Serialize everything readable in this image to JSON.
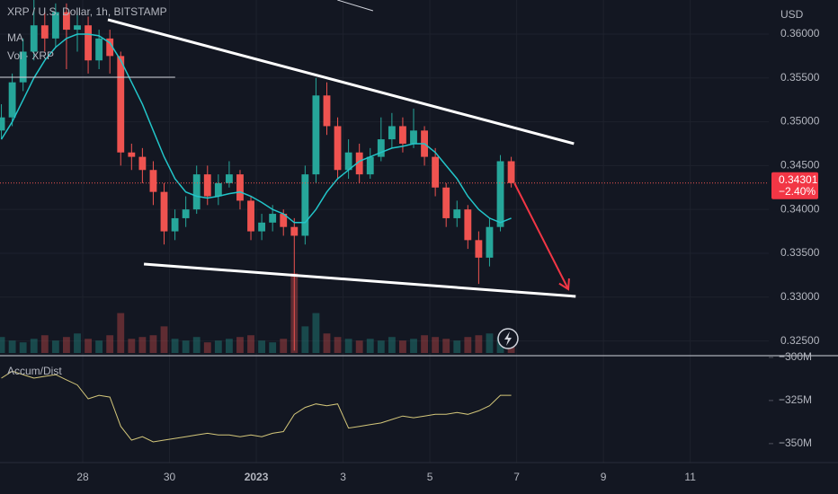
{
  "chart_data": {
    "type": "candlestick",
    "title": "XRP / U.S. Dollar, 1h, BITSTAMP",
    "indicators": [
      "MA",
      "Vol · XRP"
    ],
    "currency": "USD",
    "x": [
      -1.875,
      -1.625,
      -1.375,
      -1.125,
      -0.875,
      -0.625,
      -0.375,
      -0.125,
      0.125,
      0.375,
      0.625,
      0.875,
      1.125,
      1.375,
      1.625,
      1.875,
      2.125,
      2.375,
      2.625,
      2.875,
      3.125,
      3.375,
      3.625,
      3.875,
      4.125,
      4.375,
      4.625,
      4.875,
      5.125,
      5.375,
      5.625,
      5.875,
      6.125,
      6.375,
      6.625,
      6.875,
      7.125,
      7.375,
      7.625,
      7.875,
      8.125,
      8.375,
      8.625,
      8.875,
      9.125,
      9.375,
      9.625,
      9.875
    ],
    "open": [
      0.349,
      0.3505,
      0.3545,
      0.358,
      0.361,
      0.3595,
      0.3625,
      0.3605,
      0.361,
      0.357,
      0.3595,
      0.3575,
      0.3465,
      0.346,
      0.3445,
      0.342,
      0.3375,
      0.339,
      0.34,
      0.344,
      0.3415,
      0.343,
      0.344,
      0.341,
      0.3375,
      0.3385,
      0.3395,
      0.338,
      0.337,
      0.344,
      0.353,
      0.3495,
      0.3445,
      0.3465,
      0.344,
      0.346,
      0.348,
      0.3495,
      0.3475,
      0.349,
      0.346,
      0.3425,
      0.339,
      0.34,
      0.3365,
      0.3345,
      0.338,
      0.3455
    ],
    "high": [
      0.352,
      0.3555,
      0.3595,
      0.364,
      0.3625,
      0.3635,
      0.3635,
      0.3625,
      0.362,
      0.3605,
      0.3605,
      0.358,
      0.3475,
      0.347,
      0.3455,
      0.343,
      0.34,
      0.3415,
      0.345,
      0.345,
      0.344,
      0.3455,
      0.3445,
      0.3415,
      0.3395,
      0.3405,
      0.34,
      0.339,
      0.345,
      0.355,
      0.3545,
      0.3505,
      0.348,
      0.3475,
      0.347,
      0.3505,
      0.351,
      0.3505,
      0.3515,
      0.3495,
      0.347,
      0.343,
      0.341,
      0.3405,
      0.3375,
      0.339,
      0.3462,
      0.346
    ],
    "low": [
      0.348,
      0.3495,
      0.3535,
      0.357,
      0.358,
      0.3585,
      0.356,
      0.358,
      0.3555,
      0.356,
      0.3555,
      0.345,
      0.3445,
      0.343,
      0.3405,
      0.336,
      0.3365,
      0.338,
      0.3395,
      0.3405,
      0.3405,
      0.3425,
      0.34,
      0.3365,
      0.3365,
      0.3375,
      0.337,
      0.3239,
      0.336,
      0.343,
      0.3485,
      0.3435,
      0.3435,
      0.343,
      0.3435,
      0.3455,
      0.347,
      0.3465,
      0.347,
      0.345,
      0.3415,
      0.338,
      0.338,
      0.3355,
      0.3315,
      0.3335,
      0.3375,
      0.3425
    ],
    "close": [
      0.3505,
      0.3545,
      0.358,
      0.361,
      0.3595,
      0.3625,
      0.3605,
      0.361,
      0.357,
      0.3595,
      0.3575,
      0.3465,
      0.346,
      0.3445,
      0.342,
      0.3375,
      0.339,
      0.34,
      0.344,
      0.3415,
      0.343,
      0.344,
      0.341,
      0.3375,
      0.3385,
      0.3395,
      0.338,
      0.337,
      0.344,
      0.353,
      0.3495,
      0.3445,
      0.3465,
      0.344,
      0.346,
      0.348,
      0.3495,
      0.3475,
      0.349,
      0.346,
      0.3425,
      0.339,
      0.34,
      0.3365,
      0.3345,
      0.338,
      0.3455,
      0.34301
    ],
    "ma": [
      0.348,
      0.35,
      0.3525,
      0.355,
      0.357,
      0.3585,
      0.3595,
      0.36,
      0.36,
      0.3598,
      0.359,
      0.357,
      0.3545,
      0.352,
      0.349,
      0.346,
      0.3435,
      0.342,
      0.3415,
      0.3413,
      0.3415,
      0.3418,
      0.342,
      0.3415,
      0.3408,
      0.34,
      0.3395,
      0.3385,
      0.3385,
      0.34,
      0.342,
      0.3435,
      0.3445,
      0.3455,
      0.346,
      0.3465,
      0.347,
      0.3472,
      0.3475,
      0.3475,
      0.3465,
      0.345,
      0.3435,
      0.3415,
      0.34,
      0.339,
      0.3385,
      0.339
    ],
    "volume": [
      18,
      14,
      12,
      16,
      20,
      14,
      18,
      22,
      16,
      14,
      20,
      45,
      16,
      18,
      20,
      30,
      16,
      14,
      18,
      12,
      14,
      16,
      18,
      20,
      14,
      12,
      16,
      90,
      30,
      45,
      22,
      18,
      16,
      14,
      16,
      14,
      18,
      14,
      16,
      20,
      18,
      16,
      14,
      18,
      20,
      22,
      18,
      12
    ],
    "vol_ylim": [
      0,
      400
    ],
    "accum_dist_title": "Accum/Dist",
    "accum_dist": [
      -312,
      -308,
      -310,
      -312,
      -311,
      -310,
      -313,
      -316,
      -324,
      -322,
      -323,
      -340,
      -348,
      -346,
      -349,
      -348,
      -347,
      -346,
      -345,
      -344,
      -345,
      -345,
      -346,
      -345,
      -346,
      -344,
      -343,
      -333,
      -329,
      -327,
      -328,
      -327,
      -341,
      -340,
      -339,
      -338,
      -336,
      -334,
      -335,
      -334,
      -333,
      -333,
      -332,
      -333,
      -331,
      -328,
      -322,
      -322
    ],
    "ad_ylim": [
      -361,
      -299
    ],
    "ad_yticks": [
      {
        "value": -300,
        "label": "−300M"
      },
      {
        "value": -325,
        "label": "−325M"
      },
      {
        "value": -350,
        "label": "−350M"
      }
    ],
    "xlim": [
      -1.907,
      15.81
    ],
    "xticks": [
      {
        "value": 0,
        "label": "28"
      },
      {
        "value": 2,
        "label": "30"
      },
      {
        "value": 4,
        "label": "2023"
      },
      {
        "value": 6,
        "label": "3"
      },
      {
        "value": 8,
        "label": "5"
      },
      {
        "value": 10,
        "label": "7"
      },
      {
        "value": 12,
        "label": "9"
      },
      {
        "value": 14,
        "label": "11"
      }
    ],
    "ylim": [
      0.32342,
      0.36389
    ],
    "yticks": [
      {
        "value": 0.36,
        "label": "0.36000"
      },
      {
        "value": 0.355,
        "label": "0.35500"
      },
      {
        "value": 0.35,
        "label": "0.35000"
      },
      {
        "value": 0.345,
        "label": "0.34500"
      },
      {
        "value": 0.34,
        "label": "0.34000"
      },
      {
        "value": 0.335,
        "label": "0.33500"
      },
      {
        "value": 0.33,
        "label": "0.33000"
      },
      {
        "value": 0.325,
        "label": "0.32500"
      }
    ],
    "last_price": 0.34301,
    "change_label": "−2.40%",
    "up_color": "#26a69a",
    "down_color": "#ef5350",
    "ma_color": "#22c5c9",
    "grid": true,
    "drawings": [
      {
        "x": [
          0.58,
          11.32
        ],
        "y": [
          0.36164,
          0.3475
        ],
        "color": "#ffffff"
      },
      {
        "x": [
          1.41,
          11.36
        ],
        "y": [
          0.33377,
          0.33008
        ],
        "color": "#ffffff"
      },
      {
        "x": [
          -1.907,
          2.13
        ],
        "y": [
          0.35508,
          0.35508
        ],
        "color": "#d1d4dc"
      },
      {
        "x": [
          5.87,
          6.69
        ],
        "y": [
          0.36389,
          0.36266
        ],
        "color": "#d1d4dc"
      },
      {
        "x": [
          9.95,
          11.19
        ],
        "y": [
          0.34299,
          0.3309
        ],
        "color": "#f23645",
        "arrow": true
      }
    ]
  }
}
